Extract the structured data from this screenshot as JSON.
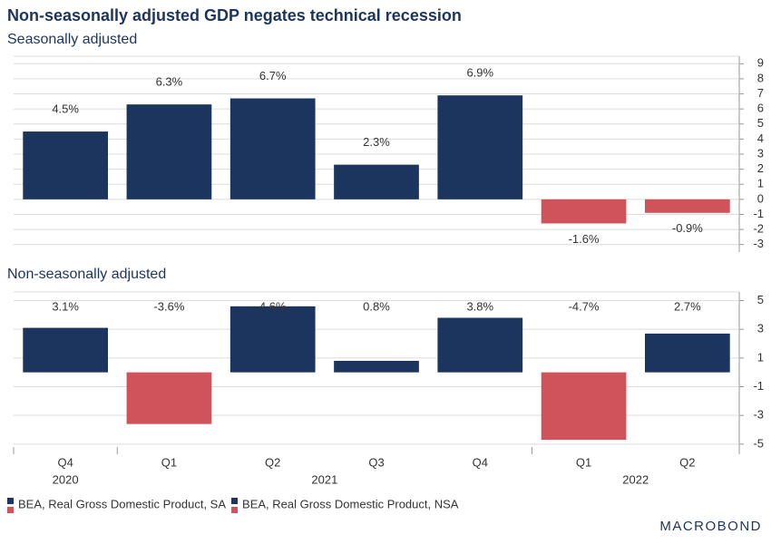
{
  "chart_data": [
    {
      "type": "bar",
      "title": "Non-seasonally adjusted GDP negates technical recession",
      "subtitle": "Seasonally adjusted",
      "label_position": "outside",
      "series": [
        {
          "name": "BEA, Real Gross Domestic Product, SA",
          "color": "#1c355e",
          "negative_color": "#d0525a",
          "values": [
            4.5,
            6.3,
            6.7,
            2.3,
            6.9,
            -1.6,
            -0.9
          ],
          "value_labels": [
            "4.5%",
            "6.3%",
            "6.7%",
            "2.3%",
            "6.9%",
            "-1.6%",
            "-0.9%"
          ]
        }
      ],
      "ylim": [
        -3.5,
        9.5
      ],
      "yticks": [
        -3,
        -2,
        -1,
        0,
        1,
        2,
        3,
        4,
        5,
        6,
        7,
        8,
        9
      ],
      "grid": true
    },
    {
      "type": "bar",
      "subtitle": "Non-seasonally adjusted",
      "label_position": "top",
      "categories": [
        "Q4",
        "Q1",
        "Q2",
        "Q3",
        "Q4",
        "Q1",
        "Q2"
      ],
      "groups": [
        {
          "label": "2020",
          "count": 1
        },
        {
          "label": "2021",
          "count": 4
        },
        {
          "label": "2022",
          "count": 2
        }
      ],
      "series": [
        {
          "name": "BEA, Real Gross Domestic Product, NSA",
          "color": "#1c355e",
          "negative_color": "#d0525a",
          "values": [
            3.1,
            -3.6,
            4.6,
            0.8,
            3.8,
            -4.7,
            2.7
          ],
          "value_labels": [
            "3.1%",
            "-3.6%",
            "4.6%",
            "0.8%",
            "3.8%",
            "-4.7%",
            "2.7%"
          ]
        }
      ],
      "ylim": [
        -5.2,
        5.6
      ],
      "yticks": [
        -5,
        -3,
        -1,
        1,
        3,
        5
      ],
      "grid": true
    }
  ],
  "brand": "MACROBOND"
}
